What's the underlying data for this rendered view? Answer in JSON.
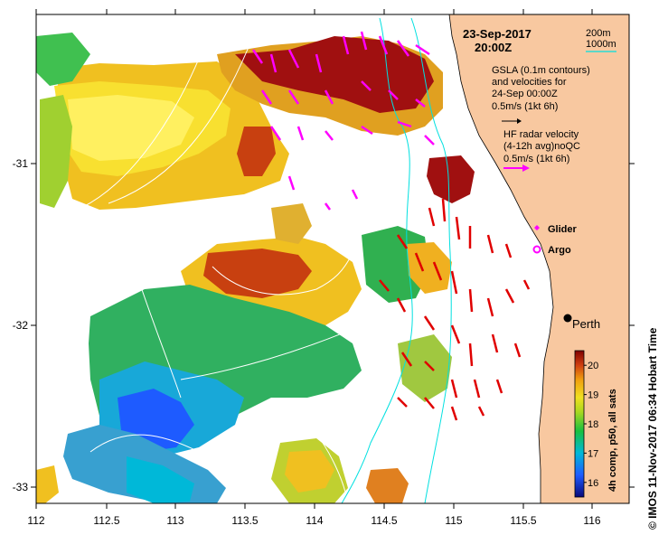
{
  "map": {
    "datetime_line1": "23-Sep-2017",
    "datetime_line2": "20:00Z",
    "gsla_line1": "GSLA (0.1m contours)",
    "gsla_line2": "and velocities for",
    "gsla_line3": "24-Sep 00:00Z",
    "gsla_scale": "0.5m/s (1kt 6h)",
    "hf_line1": "HF radar velocity",
    "hf_line2": "(4-12h avg)noQC",
    "hf_scale": "0.5m/s (1kt 6h)",
    "isobath_200": "200m",
    "isobath_1000": "1000m",
    "legend_glider": "Glider",
    "legend_argo": "Argo",
    "place_perth": "Perth",
    "credit": "© IMOS 11-Nov-2017 06:34 Hobart Time",
    "colorbar_label": "4h comp, p50, all sats",
    "colors": {
      "land": "#f8c8a0",
      "isobath": "#00e0e0",
      "glider": "#ff00ff",
      "hf_vector": "#e00000",
      "gsla_vector": "#ff00ff",
      "gsla_contour": "#ffffff"
    }
  },
  "axes": {
    "x_ticks": [
      "112",
      "112.5",
      "113",
      "113.5",
      "114",
      "114.5",
      "115",
      "115.5",
      "116"
    ],
    "y_ticks": [
      "-31",
      "-32",
      "-33"
    ],
    "x_range": [
      112,
      116.3
    ],
    "y_range": [
      -33.1,
      -30.05
    ]
  },
  "colorbar": {
    "ticks": [
      "16",
      "17",
      "18",
      "19",
      "20"
    ],
    "range": [
      15.5,
      20.5
    ]
  }
}
